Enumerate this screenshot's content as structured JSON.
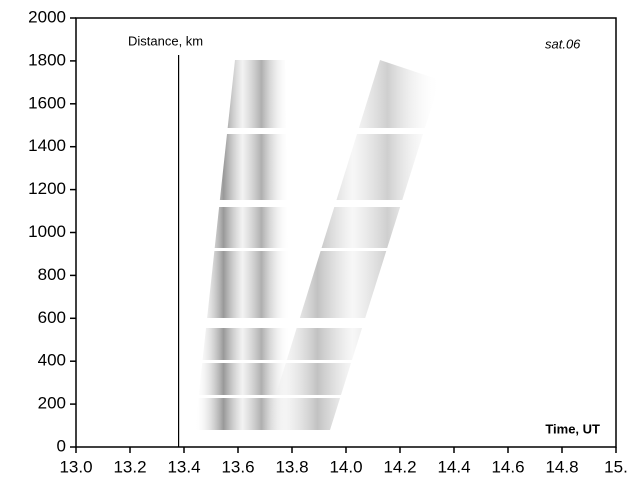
{
  "chart_data": {
    "type": "image",
    "ylabel": "Distance, km",
    "xlabel": "Time, UT",
    "annotation": "sat.06",
    "xlim": [
      13.0,
      15.0
    ],
    "ylim": [
      0,
      2000
    ],
    "xticks": [
      {
        "value": 13.0,
        "label": "13.0"
      },
      13.2,
      13.4,
      13.6,
      13.8,
      {
        "value": 14.0,
        "label": "14.0"
      },
      14.2,
      14.4,
      14.6,
      14.8,
      {
        "value": 15.0,
        "label": "15."
      }
    ],
    "yticks": [
      0,
      200,
      400,
      600,
      800,
      1000,
      1200,
      1400,
      1600,
      1800,
      2000
    ],
    "vline": 13.38
  }
}
